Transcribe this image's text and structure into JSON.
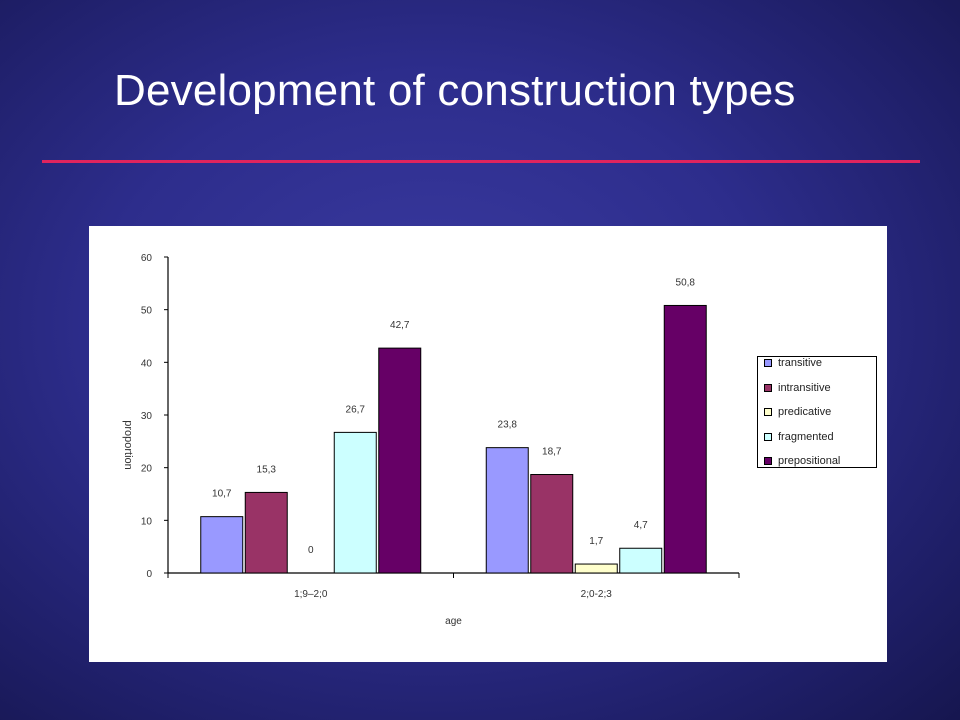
{
  "slide": {
    "title": "Development of construction types"
  },
  "colors": {
    "accent_rule": "#e0245e",
    "title_text": "#ffffff"
  },
  "chart_data": {
    "type": "bar",
    "title": "",
    "xlabel": "age",
    "ylabel": "proportion",
    "ylim": [
      0,
      60
    ],
    "yticks": [
      0,
      10,
      20,
      30,
      40,
      50,
      60
    ],
    "categories": [
      "1;9–2;0",
      "2;0-2;3"
    ],
    "series": [
      {
        "name": "transitive",
        "values": [
          10.7,
          23.8
        ],
        "labels": [
          "10,7",
          "23,8"
        ],
        "color": "#9999ff"
      },
      {
        "name": "intransitive",
        "values": [
          15.3,
          18.7
        ],
        "labels": [
          "15,3",
          "18,7"
        ],
        "color": "#993366"
      },
      {
        "name": "predicative",
        "values": [
          0,
          1.7
        ],
        "labels": [
          "0",
          "1,7"
        ],
        "color": "#ffffcc"
      },
      {
        "name": "fragmented",
        "values": [
          26.7,
          4.7
        ],
        "labels": [
          "26,7",
          "4,7"
        ],
        "color": "#ccffff"
      },
      {
        "name": "prepositional",
        "values": [
          42.7,
          50.8
        ],
        "labels": [
          "42,7",
          "50,8"
        ],
        "color": "#660066"
      }
    ],
    "grid": false,
    "legend_position": "right"
  }
}
